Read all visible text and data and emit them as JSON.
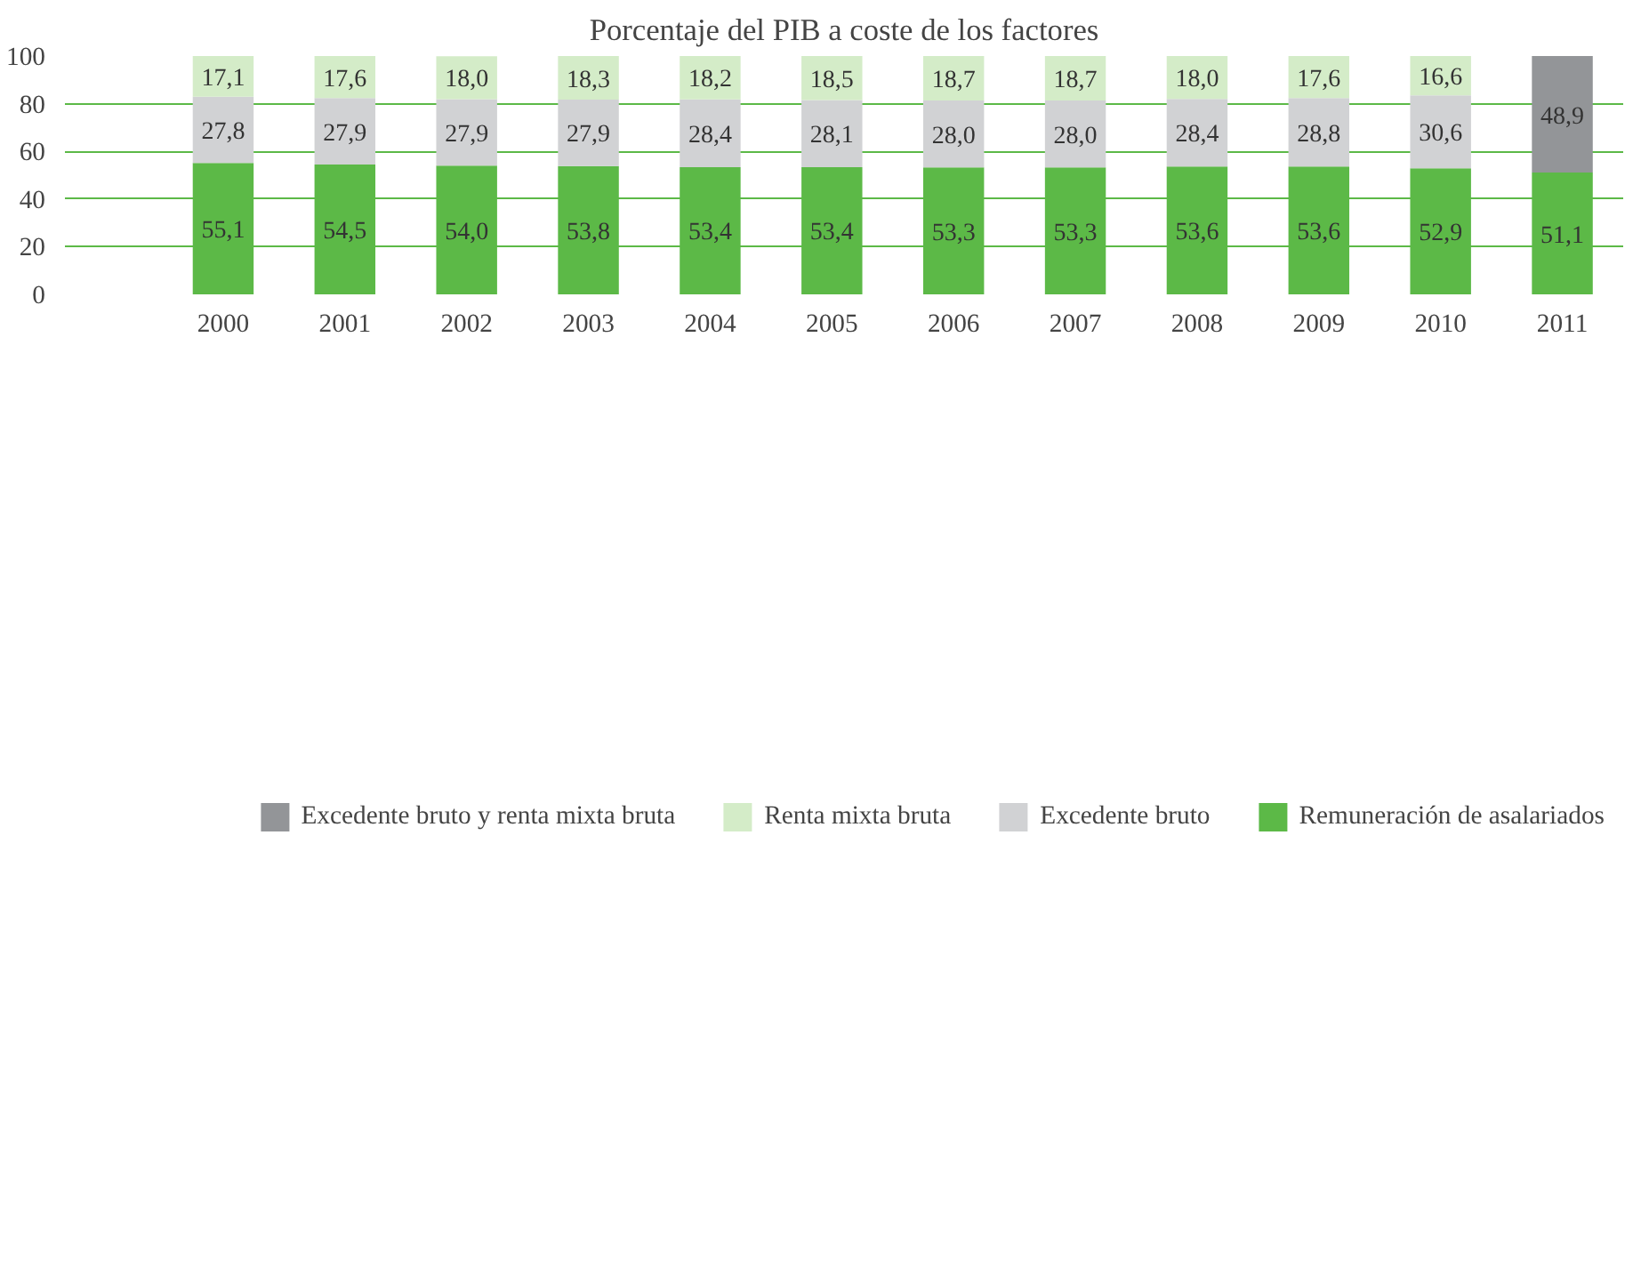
{
  "chart_data": {
    "type": "bar",
    "stacked": true,
    "title": "Porcentaje del PIB a coste de los factores",
    "categories": [
      "2000",
      "2001",
      "2002",
      "2003",
      "2004",
      "2005",
      "2006",
      "2007",
      "2008",
      "2009",
      "2010",
      "2011"
    ],
    "series": [
      {
        "name": "Remuneración de asalariados",
        "color": "#5cb947",
        "values": [
          55.1,
          54.5,
          54.0,
          53.8,
          53.4,
          53.4,
          53.3,
          53.3,
          53.6,
          53.6,
          52.9,
          51.1
        ],
        "value_labels": [
          "55,1",
          "54,5",
          "54,0",
          "53,8",
          "53,4",
          "53,4",
          "53,3",
          "53,3",
          "53,6",
          "53,6",
          "52,9",
          "51,1"
        ]
      },
      {
        "name": "Excedente bruto",
        "color": "#d1d2d4",
        "values": [
          27.8,
          27.9,
          27.9,
          27.9,
          28.4,
          28.1,
          28.0,
          28.0,
          28.4,
          28.8,
          30.6,
          null
        ],
        "value_labels": [
          "27,8",
          "27,9",
          "27,9",
          "27,9",
          "28,4",
          "28,1",
          "28,0",
          "28,0",
          "28,4",
          "28,8",
          "30,6",
          null
        ]
      },
      {
        "name": "Renta mixta bruta",
        "color": "#d4ecc8",
        "values": [
          17.1,
          17.6,
          18.0,
          18.3,
          18.2,
          18.5,
          18.7,
          18.7,
          18.0,
          17.6,
          16.6,
          null
        ],
        "value_labels": [
          "17,1",
          "17,6",
          "18,0",
          "18,3",
          "18,2",
          "18,5",
          "18,7",
          "18,7",
          "18,0",
          "17,6",
          "16,6",
          null
        ]
      },
      {
        "name": "Excedente bruto y renta mixta bruta",
        "color": "#939598",
        "values": [
          null,
          null,
          null,
          null,
          null,
          null,
          null,
          null,
          null,
          null,
          null,
          48.9
        ],
        "value_labels": [
          null,
          null,
          null,
          null,
          null,
          null,
          null,
          null,
          null,
          null,
          null,
          "48,9"
        ]
      }
    ],
    "ylim": [
      0,
      100
    ],
    "yticks": [
      0,
      20,
      40,
      60,
      80,
      100
    ],
    "grid": "y",
    "legend": "bottom"
  }
}
